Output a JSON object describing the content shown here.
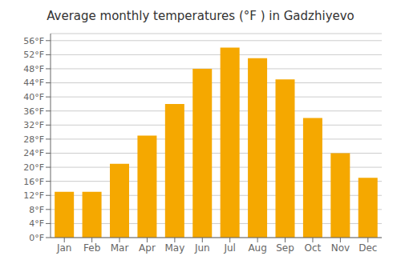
{
  "chart_data": {
    "type": "bar",
    "title": "Average monthly temperatures (°F ) in Gadzhiyevo",
    "categories": [
      "Jan",
      "Feb",
      "Mar",
      "Apr",
      "May",
      "Jun",
      "Jul",
      "Aug",
      "Sep",
      "Oct",
      "Nov",
      "Dec"
    ],
    "values": [
      13,
      13,
      21,
      29,
      38,
      48,
      54,
      51,
      45,
      34,
      24,
      17
    ],
    "color": "#F5A800",
    "ylim": [
      0,
      58
    ],
    "yticks": [
      {
        "value": 0,
        "label": "0°F"
      },
      {
        "value": 4,
        "label": "4°F"
      },
      {
        "value": 8,
        "label": "8°F"
      },
      {
        "value": 12,
        "label": "12°F"
      },
      {
        "value": 16,
        "label": "16°F"
      },
      {
        "value": 20,
        "label": "20°F"
      },
      {
        "value": 24,
        "label": "24°F"
      },
      {
        "value": 28,
        "label": "28°F"
      },
      {
        "value": 32,
        "label": "32°F"
      },
      {
        "value": 36,
        "label": "36°F"
      },
      {
        "value": 40,
        "label": "40°F"
      },
      {
        "value": 44,
        "label": "44°F"
      },
      {
        "value": 48,
        "label": "48°F"
      },
      {
        "value": 52,
        "label": "52°F"
      },
      {
        "value": 56,
        "label": "56°F"
      }
    ],
    "grid": true
  }
}
